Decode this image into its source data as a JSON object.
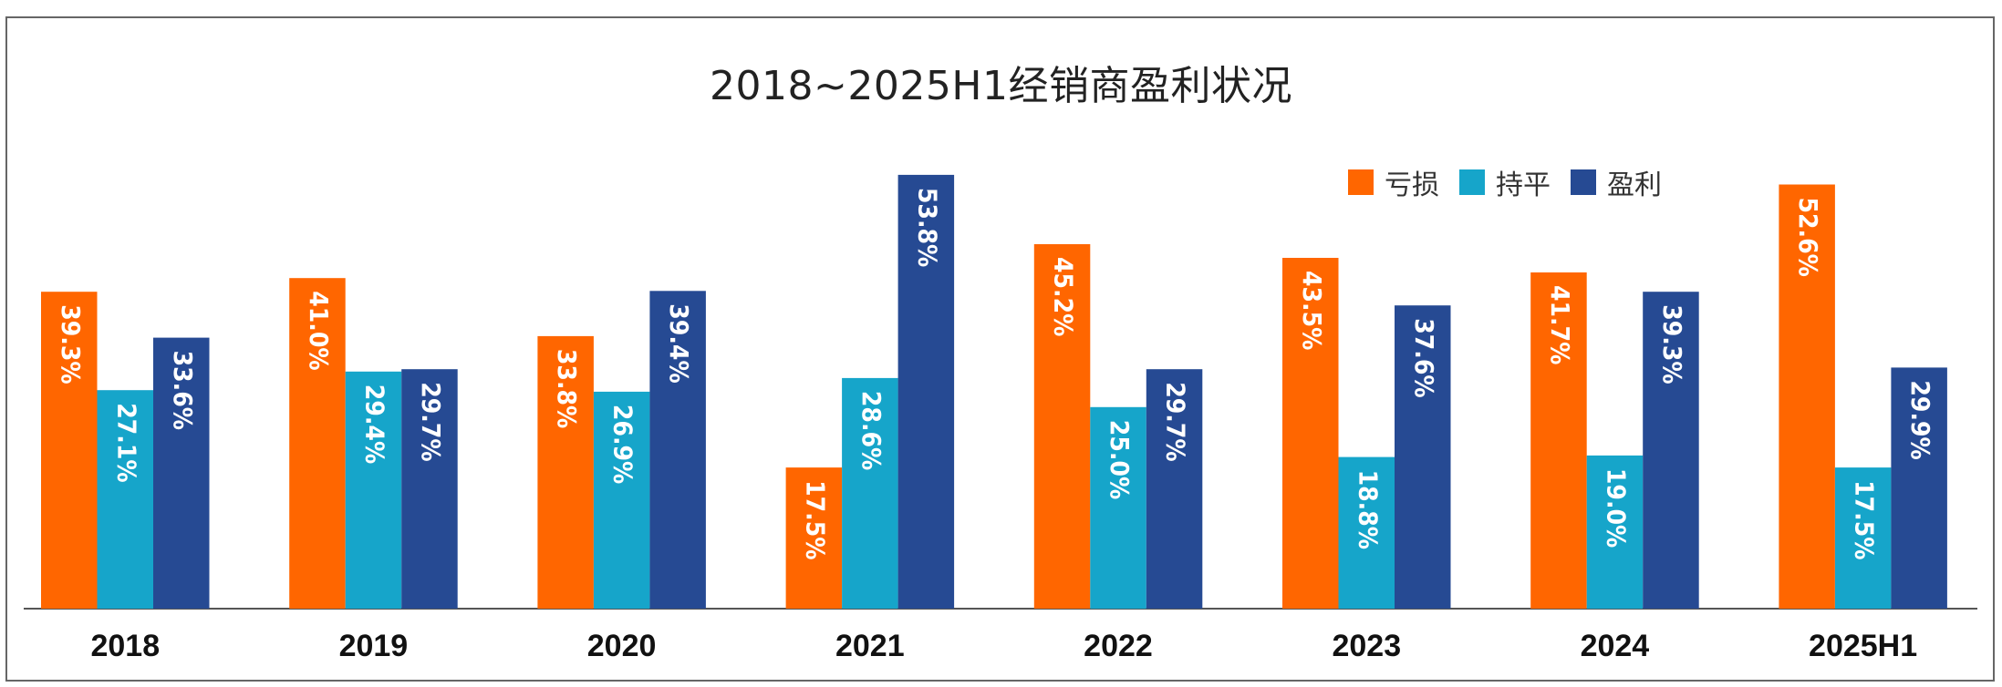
{
  "chart_data": {
    "type": "bar",
    "title": "2018~2025H1经销商盈利状况",
    "categories": [
      "2018",
      "2019",
      "2020",
      "2021",
      "2022",
      "2023",
      "2024",
      "2025H1"
    ],
    "series": [
      {
        "name": "亏损",
        "color": "#FF6600",
        "values": [
          39.3,
          41.0,
          33.8,
          17.5,
          45.2,
          43.5,
          41.7,
          52.6
        ]
      },
      {
        "name": "持平",
        "color": "#16A5CA",
        "values": [
          27.1,
          29.4,
          26.9,
          28.6,
          25.0,
          18.8,
          19.0,
          17.5
        ]
      },
      {
        "name": "盈利",
        "color": "#264A93",
        "values": [
          33.6,
          29.7,
          39.4,
          53.8,
          29.7,
          37.6,
          39.3,
          29.9
        ]
      }
    ],
    "value_format": "%",
    "legend_position": "top-right",
    "grid": false,
    "y_axis_visible": false,
    "ylim": [
      0,
      60
    ]
  }
}
